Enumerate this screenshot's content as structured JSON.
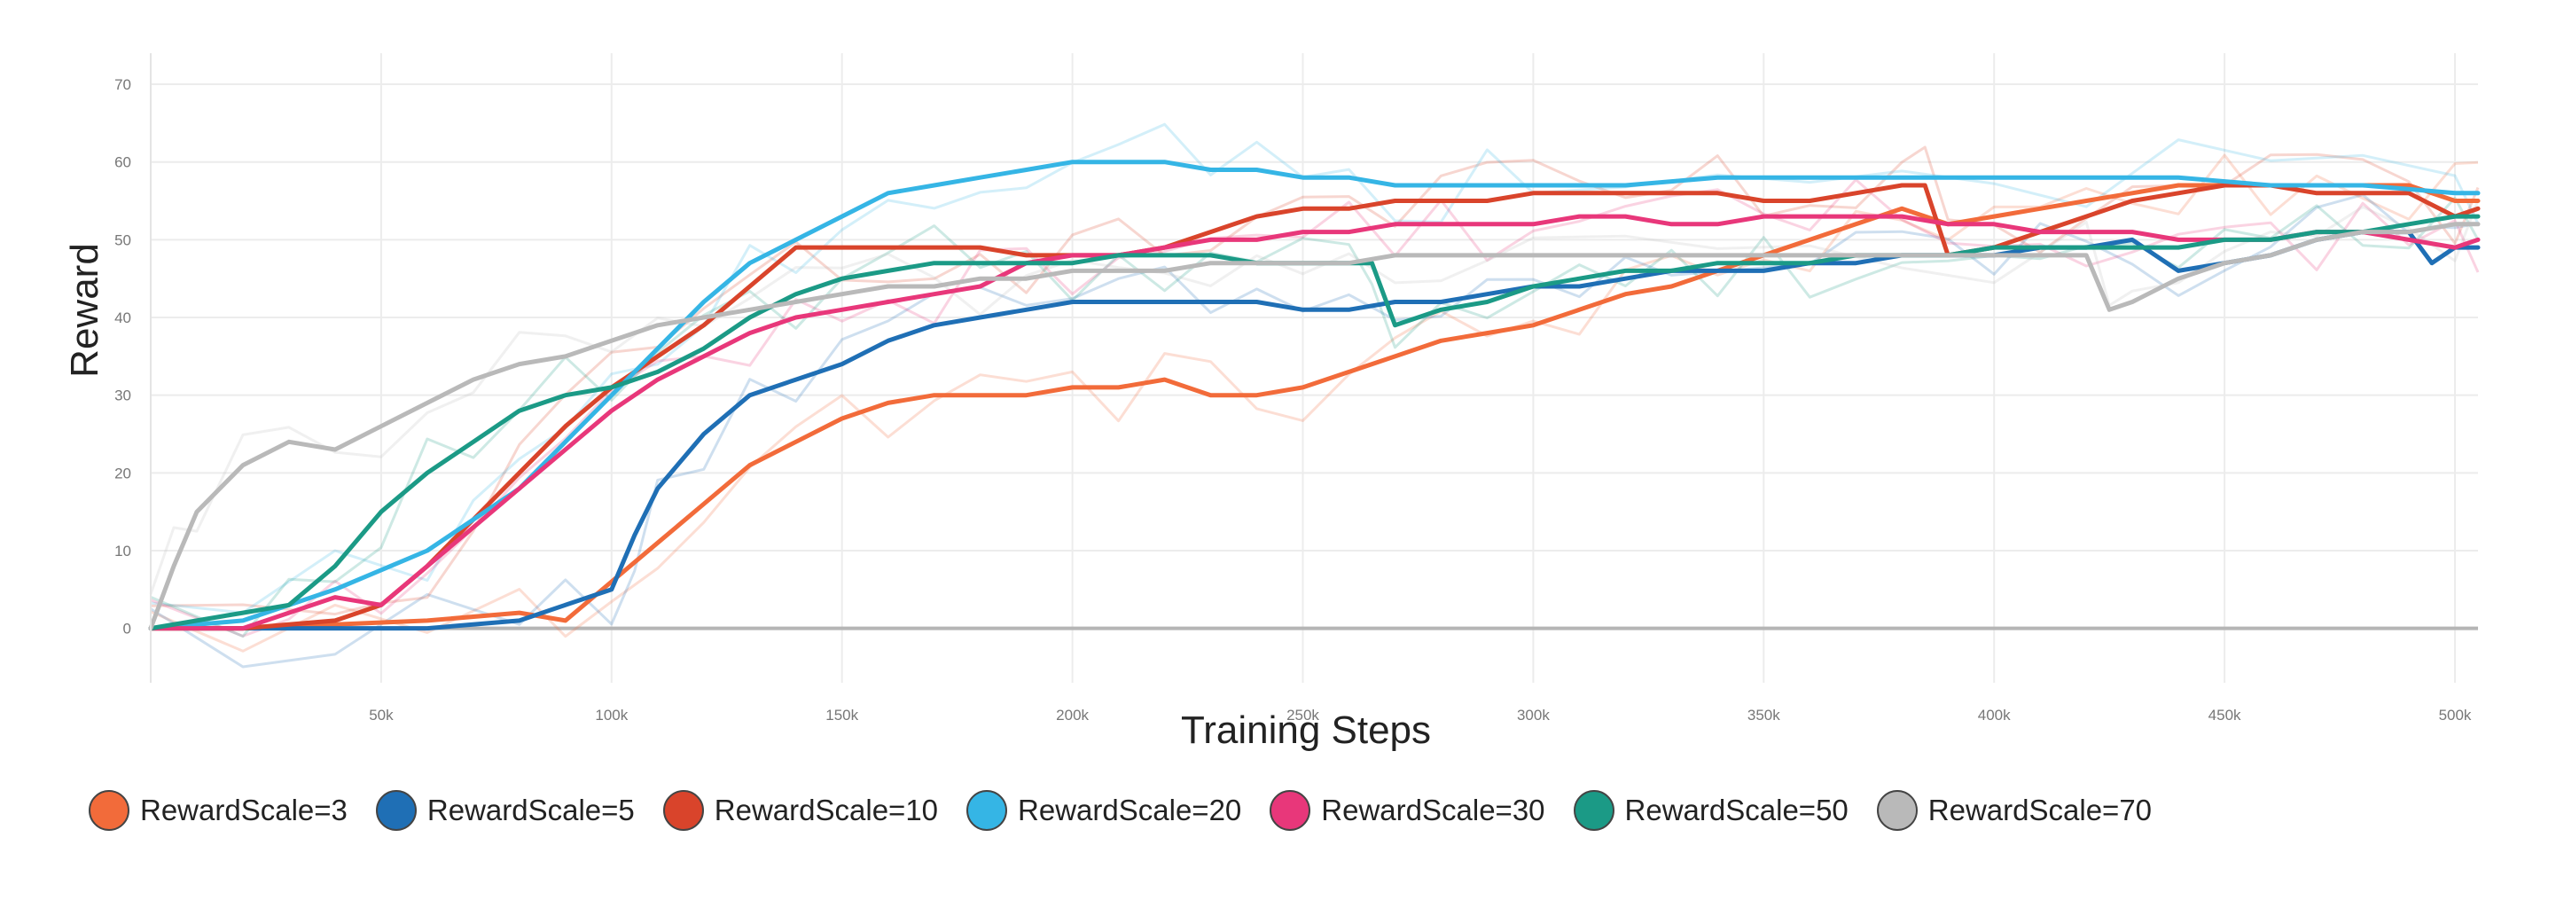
{
  "chart_data": {
    "type": "line",
    "title": "",
    "xlabel": "Training Steps",
    "ylabel": "Reward",
    "xlim": [
      0,
      505000
    ],
    "ylim": [
      -7,
      74
    ],
    "x_ticks": [
      50000,
      100000,
      150000,
      200000,
      250000,
      300000,
      350000,
      400000,
      450000,
      500000
    ],
    "x_tick_labels": [
      "50k",
      "100k",
      "150k",
      "200k",
      "250k",
      "300k",
      "350k",
      "400k",
      "450k",
      "500k"
    ],
    "y_ticks": [
      0,
      10,
      20,
      30,
      40,
      50,
      60,
      70
    ],
    "y_tick_labels": [
      "0",
      "10",
      "20",
      "30",
      "40",
      "50",
      "60",
      "70"
    ],
    "grid": true,
    "legend_position": "bottom",
    "series": [
      {
        "name": "RewardScale=3",
        "color": "#f26b3a",
        "x": [
          0,
          20000,
          40000,
          60000,
          80000,
          90000,
          100000,
          110000,
          120000,
          130000,
          140000,
          150000,
          160000,
          170000,
          180000,
          190000,
          200000,
          210000,
          220000,
          230000,
          240000,
          250000,
          260000,
          270000,
          280000,
          290000,
          300000,
          310000,
          320000,
          330000,
          340000,
          350000,
          360000,
          370000,
          380000,
          390000,
          400000,
          410000,
          420000,
          430000,
          440000,
          450000,
          460000,
          470000,
          480000,
          490000,
          500000,
          505000
        ],
        "y": [
          0,
          0,
          0.5,
          1,
          2,
          1,
          6,
          11,
          16,
          21,
          24,
          27,
          29,
          30,
          30,
          30,
          31,
          31,
          32,
          30,
          30,
          31,
          33,
          35,
          37,
          38,
          39,
          41,
          43,
          44,
          46,
          48,
          50,
          52,
          54,
          52,
          53,
          54,
          55,
          56,
          57,
          57,
          57,
          57,
          57,
          57,
          55,
          55
        ]
      },
      {
        "name": "RewardScale=5",
        "color": "#1f6fb5",
        "x": [
          0,
          20000,
          40000,
          60000,
          80000,
          90000,
          100000,
          105000,
          110000,
          120000,
          130000,
          140000,
          150000,
          160000,
          170000,
          180000,
          190000,
          200000,
          210000,
          220000,
          230000,
          240000,
          250000,
          260000,
          270000,
          280000,
          290000,
          300000,
          310000,
          320000,
          330000,
          340000,
          350000,
          360000,
          370000,
          380000,
          390000,
          400000,
          410000,
          420000,
          430000,
          440000,
          450000,
          460000,
          470000,
          480000,
          490000,
          495000,
          500000,
          505000
        ],
        "y": [
          0,
          0,
          0,
          0,
          1,
          3,
          5,
          12,
          18,
          25,
          30,
          32,
          34,
          37,
          39,
          40,
          41,
          42,
          42,
          42,
          42,
          42,
          41,
          41,
          42,
          42,
          43,
          44,
          44,
          45,
          46,
          46,
          46,
          47,
          47,
          48,
          48,
          48,
          49,
          49,
          50,
          46,
          47,
          48,
          50,
          51,
          51,
          47,
          49,
          49
        ]
      },
      {
        "name": "RewardScale=10",
        "color": "#d9442b",
        "x": [
          0,
          20000,
          40000,
          50000,
          60000,
          70000,
          80000,
          90000,
          100000,
          110000,
          120000,
          130000,
          140000,
          150000,
          160000,
          170000,
          180000,
          190000,
          200000,
          210000,
          220000,
          230000,
          240000,
          250000,
          260000,
          270000,
          280000,
          290000,
          300000,
          310000,
          320000,
          330000,
          340000,
          350000,
          360000,
          370000,
          380000,
          385000,
          390000,
          400000,
          410000,
          420000,
          430000,
          440000,
          450000,
          460000,
          470000,
          480000,
          490000,
          500000,
          505000
        ],
        "y": [
          0,
          0,
          1,
          3,
          8,
          14,
          20,
          26,
          31,
          35,
          39,
          44,
          49,
          49,
          49,
          49,
          49,
          48,
          48,
          48,
          49,
          51,
          53,
          54,
          54,
          55,
          55,
          55,
          56,
          56,
          56,
          56,
          56,
          55,
          55,
          56,
          57,
          57,
          48,
          49,
          51,
          53,
          55,
          56,
          57,
          57,
          56,
          56,
          56,
          53,
          54
        ]
      },
      {
        "name": "RewardScale=20",
        "color": "#35b5e5",
        "x": [
          0,
          20000,
          40000,
          60000,
          70000,
          80000,
          90000,
          100000,
          110000,
          120000,
          130000,
          140000,
          150000,
          160000,
          170000,
          180000,
          190000,
          200000,
          210000,
          220000,
          230000,
          240000,
          250000,
          260000,
          270000,
          280000,
          290000,
          300000,
          320000,
          340000,
          360000,
          380000,
          400000,
          420000,
          440000,
          460000,
          480000,
          500000,
          505000
        ],
        "y": [
          0,
          1,
          5,
          10,
          14,
          18,
          24,
          30,
          36,
          42,
          47,
          50,
          53,
          56,
          57,
          58,
          59,
          60,
          60,
          60,
          59,
          59,
          58,
          58,
          57,
          57,
          57,
          57,
          57,
          58,
          58,
          58,
          58,
          58,
          58,
          57,
          57,
          56,
          56
        ]
      },
      {
        "name": "RewardScale=30",
        "color": "#e8377a",
        "x": [
          0,
          20000,
          30000,
          40000,
          50000,
          60000,
          70000,
          80000,
          90000,
          100000,
          110000,
          120000,
          130000,
          140000,
          150000,
          160000,
          170000,
          180000,
          190000,
          200000,
          210000,
          220000,
          230000,
          240000,
          250000,
          260000,
          270000,
          280000,
          290000,
          300000,
          310000,
          320000,
          330000,
          340000,
          350000,
          360000,
          370000,
          380000,
          390000,
          400000,
          410000,
          420000,
          430000,
          440000,
          450000,
          460000,
          470000,
          480000,
          490000,
          500000,
          505000
        ],
        "y": [
          0,
          0,
          2,
          4,
          3,
          8,
          13,
          18,
          23,
          28,
          32,
          35,
          38,
          40,
          41,
          42,
          43,
          44,
          47,
          48,
          48,
          49,
          50,
          50,
          51,
          51,
          52,
          52,
          52,
          52,
          53,
          53,
          52,
          52,
          53,
          53,
          53,
          53,
          52,
          52,
          51,
          51,
          51,
          50,
          50,
          50,
          51,
          51,
          50,
          49,
          50
        ]
      },
      {
        "name": "RewardScale=50",
        "color": "#1b9a86",
        "x": [
          0,
          20000,
          30000,
          40000,
          50000,
          60000,
          70000,
          80000,
          90000,
          100000,
          110000,
          120000,
          130000,
          140000,
          150000,
          160000,
          170000,
          180000,
          190000,
          200000,
          210000,
          220000,
          230000,
          240000,
          250000,
          260000,
          265000,
          270000,
          280000,
          290000,
          300000,
          310000,
          320000,
          330000,
          340000,
          350000,
          360000,
          370000,
          380000,
          390000,
          400000,
          410000,
          420000,
          430000,
          440000,
          450000,
          460000,
          470000,
          480000,
          490000,
          500000,
          505000
        ],
        "y": [
          0,
          2,
          3,
          8,
          15,
          20,
          24,
          28,
          30,
          31,
          33,
          36,
          40,
          43,
          45,
          46,
          47,
          47,
          47,
          47,
          48,
          48,
          48,
          47,
          47,
          47,
          47,
          39,
          41,
          42,
          44,
          45,
          46,
          46,
          47,
          47,
          47,
          48,
          48,
          48,
          49,
          49,
          49,
          49,
          49,
          50,
          50,
          51,
          51,
          52,
          53,
          53
        ]
      },
      {
        "name": "RewardScale=70",
        "color": "#b9b9b9",
        "x": [
          0,
          5000,
          10000,
          20000,
          30000,
          40000,
          50000,
          60000,
          70000,
          80000,
          90000,
          100000,
          110000,
          120000,
          130000,
          140000,
          150000,
          160000,
          170000,
          180000,
          190000,
          200000,
          210000,
          220000,
          230000,
          240000,
          250000,
          260000,
          270000,
          280000,
          290000,
          300000,
          320000,
          340000,
          360000,
          380000,
          400000,
          420000,
          425000,
          430000,
          440000,
          450000,
          460000,
          470000,
          480000,
          490000,
          500000,
          505000
        ],
        "y": [
          0,
          8,
          15,
          21,
          24,
          23,
          26,
          29,
          32,
          34,
          35,
          37,
          39,
          40,
          41,
          42,
          43,
          44,
          44,
          45,
          45,
          46,
          46,
          46,
          47,
          47,
          47,
          47,
          48,
          48,
          48,
          48,
          48,
          48,
          48,
          48,
          48,
          48,
          41,
          42,
          45,
          47,
          48,
          50,
          51,
          51,
          52,
          52
        ]
      }
    ]
  }
}
